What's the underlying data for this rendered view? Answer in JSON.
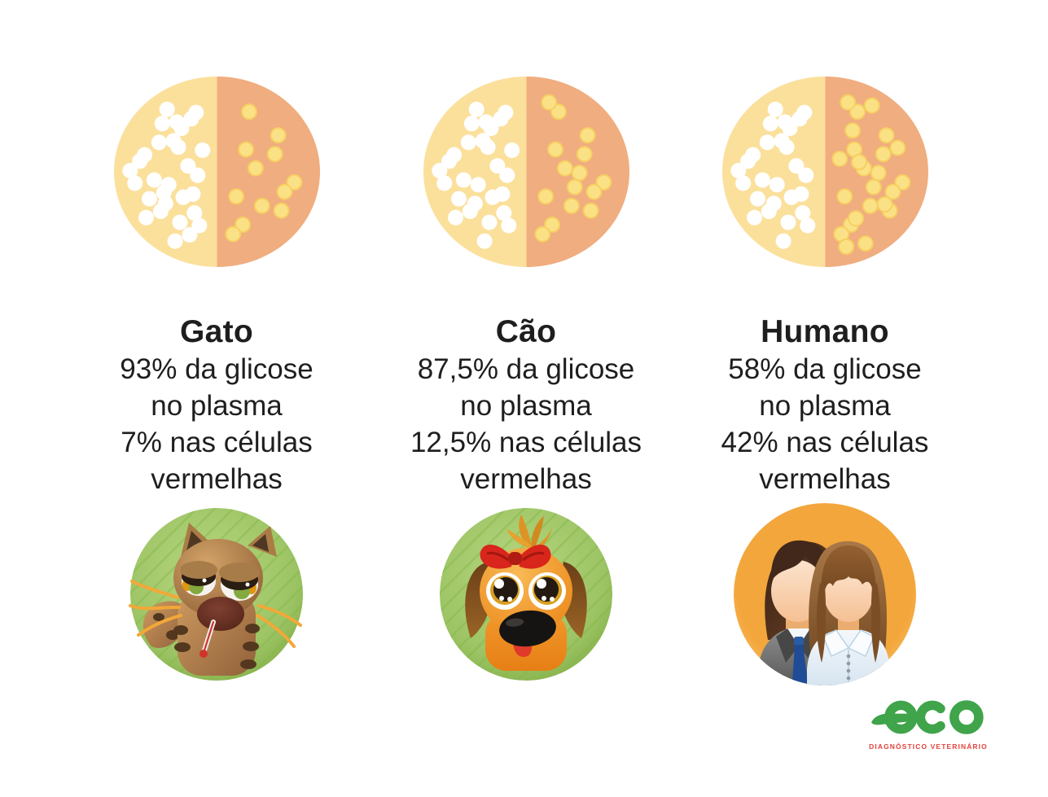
{
  "palette": {
    "background": "#FFFFFF",
    "text": "#1E1E1E",
    "plasma_half": "#FBE09C",
    "cells_half": "#F0AD7F",
    "plasma_dot": "#FFFFFF",
    "cells_dot": "#FBE186",
    "cells_dot_edge": "#F6CF62",
    "green_circle": "#9CC464",
    "orange_circle": "#F3A63C",
    "logo_green": "#3FA44A",
    "logo_red": "#E4423C"
  },
  "columns": [
    {
      "species": "Gato",
      "lines": [
        "93% da glicose",
        "no plasma",
        "7% nas células",
        "vermelhas"
      ],
      "plasma_percent": 93,
      "red_cells_percent": 7,
      "dots": {
        "plasma": 30,
        "red_cells": 12
      },
      "illustration": "sick-cat-with-thermometer"
    },
    {
      "species": "Cão",
      "lines": [
        "87,5% da glicose",
        "no plasma",
        "12,5% nas células",
        "vermelhas"
      ],
      "plasma_percent": 87.5,
      "red_cells_percent": 12.5,
      "dots": {
        "plasma": 28,
        "red_cells": 15
      },
      "illustration": "dog-with-red-bow"
    },
    {
      "species": "Humano",
      "lines": [
        "58% da glicose",
        "no plasma",
        "42% nas células",
        "vermelhas"
      ],
      "plasma_percent": 58,
      "red_cells_percent": 42,
      "dots": {
        "plasma": 27,
        "red_cells": 24
      },
      "illustration": "man-and-woman"
    }
  ],
  "logo": {
    "name": "eco",
    "subtitle": "DIAGNÓSTICO VETERINÁRIO"
  },
  "chart_data": [
    {
      "type": "pie",
      "title": "Gato",
      "labels": [
        "da glicose no plasma",
        "nas células vermelhas"
      ],
      "values": [
        93,
        7
      ]
    },
    {
      "type": "pie",
      "title": "Cão",
      "labels": [
        "da glicose no plasma",
        "nas células vermelhas"
      ],
      "values": [
        87.5,
        12.5
      ]
    },
    {
      "type": "pie",
      "title": "Humano",
      "labels": [
        "da glicose no plasma",
        "nas células vermelhas"
      ],
      "values": [
        58,
        42
      ]
    }
  ]
}
